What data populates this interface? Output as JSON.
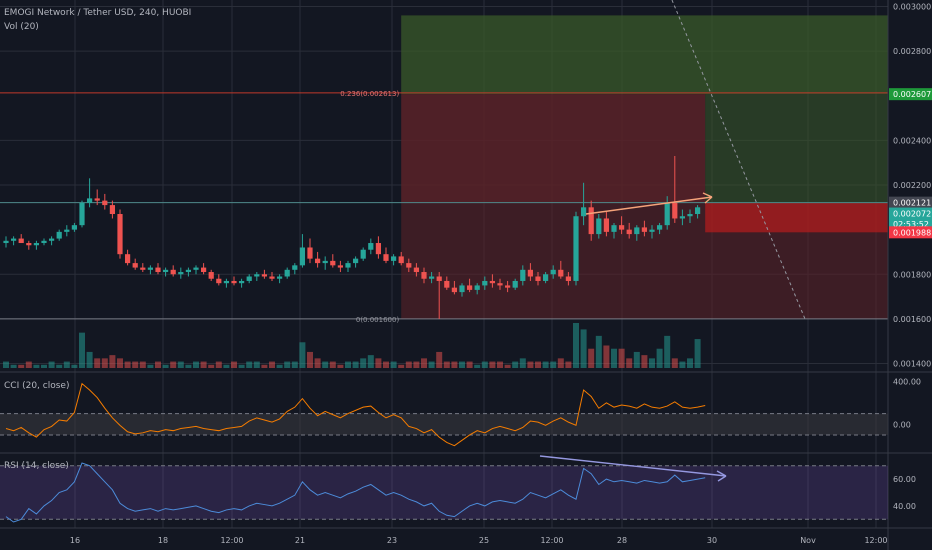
{
  "header": {
    "symbol_title": "EMOGI Network / Tether USD, 240, HUOBI",
    "volume_label": "Vol (20)"
  },
  "indicators": {
    "cci_label": "CCI (20, close)",
    "rsi_label": "RSI (14, close)"
  },
  "price_axis": {
    "ticks": [
      "0.003000",
      "0.002800",
      "0.002400",
      "0.002200",
      "0.001800",
      "0.001600",
      "0.001400"
    ],
    "tick_values": [
      0.003,
      0.0028,
      0.0024,
      0.0022,
      0.0018,
      0.0016,
      0.0014
    ]
  },
  "price_badges": [
    {
      "label": "0.002607",
      "value": 0.002607,
      "bg": "#1e9a3a",
      "fg": "#ffffff"
    },
    {
      "label": "0.002121",
      "value": 0.002121,
      "bg": "#434651",
      "fg": "#ffffff"
    },
    {
      "label": "0.002072",
      "value": 0.002072,
      "bg": "#26a69a",
      "fg": "#ffffff"
    },
    {
      "label": "02:53:52",
      "value": 0.002025,
      "bg": "#26a69a",
      "fg": "#ffffff"
    },
    {
      "label": "0.001988",
      "value": 0.001988,
      "bg": "#f23645",
      "fg": "#ffffff"
    }
  ],
  "fib_labels": [
    {
      "label": "0.236(0.002613)",
      "value": 0.002613
    },
    {
      "label": "0(0.001600)",
      "value": 0.0016
    }
  ],
  "cci_axis": {
    "ticks": [
      "400.00",
      "0.00"
    ],
    "tick_values": [
      400,
      0
    ]
  },
  "rsi_axis": {
    "ticks": [
      "60.00",
      "40.00"
    ],
    "tick_values": [
      60,
      40
    ]
  },
  "time_axis": {
    "labels": [
      "16",
      "18",
      "12:00",
      "21",
      "23",
      "25",
      "12:00",
      "28",
      "30",
      "Nov",
      "12:00"
    ]
  },
  "colors": {
    "background": "#131722",
    "bull": "#26a69a",
    "bear": "#ef5350",
    "grid": "#2a2e39",
    "target_zone": "#3a5a2a",
    "stop_zone": "#5a2228",
    "cci_line": "#f57c00",
    "rsi_line": "#4c8bd9",
    "rsi_band": "#7e57c2",
    "trend_line": "#f5a37a",
    "rsi_trend": "#9598e0"
  },
  "chart_data": [
    {
      "type": "candlestick",
      "title": "EMOGI Network / Tether USD, 240, HUOBI",
      "ylim": [
        0.00138,
        0.00302
      ],
      "candles": [
        [
          0.00194,
          0.00197,
          0.00192,
          0.00195
        ],
        [
          0.00195,
          0.00197,
          0.00193,
          0.00196
        ],
        [
          0.00196,
          0.00198,
          0.00194,
          0.00194
        ],
        [
          0.00194,
          0.00195,
          0.00191,
          0.00193
        ],
        [
          0.00193,
          0.00195,
          0.00191,
          0.00194
        ],
        [
          0.00194,
          0.00196,
          0.00193,
          0.00195
        ],
        [
          0.00195,
          0.00197,
          0.00193,
          0.00196
        ],
        [
          0.00196,
          0.002,
          0.00195,
          0.00199
        ],
        [
          0.00199,
          0.00202,
          0.00197,
          0.002
        ],
        [
          0.002,
          0.00203,
          0.00199,
          0.00202
        ],
        [
          0.00202,
          0.00213,
          0.00201,
          0.00212
        ],
        [
          0.00212,
          0.00223,
          0.0021,
          0.00214
        ],
        [
          0.00214,
          0.00218,
          0.00211,
          0.00213
        ],
        [
          0.00213,
          0.00216,
          0.00209,
          0.00211
        ],
        [
          0.00211,
          0.00213,
          0.00205,
          0.00207
        ],
        [
          0.00207,
          0.00209,
          0.00187,
          0.00189
        ],
        [
          0.00189,
          0.00191,
          0.00184,
          0.00185
        ],
        [
          0.00185,
          0.00187,
          0.00182,
          0.00183
        ],
        [
          0.00183,
          0.00185,
          0.00181,
          0.00182
        ],
        [
          0.00182,
          0.00184,
          0.0018,
          0.00183
        ],
        [
          0.00183,
          0.00185,
          0.0018,
          0.00181
        ],
        [
          0.00181,
          0.00183,
          0.00179,
          0.00182
        ],
        [
          0.00182,
          0.00184,
          0.00179,
          0.0018
        ],
        [
          0.0018,
          0.00183,
          0.00178,
          0.00181
        ],
        [
          0.00181,
          0.00183,
          0.00179,
          0.00182
        ],
        [
          0.00182,
          0.00184,
          0.0018,
          0.00183
        ],
        [
          0.00183,
          0.00185,
          0.0018,
          0.00181
        ],
        [
          0.00181,
          0.00182,
          0.00177,
          0.00178
        ],
        [
          0.00178,
          0.0018,
          0.00175,
          0.00176
        ],
        [
          0.00176,
          0.00178,
          0.00174,
          0.00177
        ],
        [
          0.00177,
          0.00179,
          0.00175,
          0.00176
        ],
        [
          0.00176,
          0.00178,
          0.00174,
          0.00177
        ],
        [
          0.00177,
          0.0018,
          0.00176,
          0.00179
        ],
        [
          0.00179,
          0.00181,
          0.00177,
          0.0018
        ],
        [
          0.0018,
          0.00182,
          0.00178,
          0.00179
        ],
        [
          0.00179,
          0.00181,
          0.00177,
          0.00178
        ],
        [
          0.00178,
          0.0018,
          0.00176,
          0.00179
        ],
        [
          0.00179,
          0.00183,
          0.00178,
          0.00182
        ],
        [
          0.00182,
          0.00185,
          0.0018,
          0.00184
        ],
        [
          0.00184,
          0.00198,
          0.00183,
          0.00192
        ],
        [
          0.00192,
          0.00196,
          0.00185,
          0.00187
        ],
        [
          0.00187,
          0.0019,
          0.00183,
          0.00185
        ],
        [
          0.00185,
          0.00188,
          0.00182,
          0.00186
        ],
        [
          0.00186,
          0.00189,
          0.00183,
          0.00184
        ],
        [
          0.00184,
          0.00186,
          0.00181,
          0.00183
        ],
        [
          0.00183,
          0.00186,
          0.00181,
          0.00185
        ],
        [
          0.00185,
          0.00188,
          0.00183,
          0.00187
        ],
        [
          0.00187,
          0.00192,
          0.00186,
          0.00191
        ],
        [
          0.00191,
          0.00196,
          0.00189,
          0.00194
        ],
        [
          0.00194,
          0.00197,
          0.00187,
          0.00189
        ],
        [
          0.00189,
          0.00192,
          0.00185,
          0.00186
        ],
        [
          0.00186,
          0.00189,
          0.00184,
          0.00188
        ],
        [
          0.00188,
          0.0019,
          0.00184,
          0.00185
        ],
        [
          0.00185,
          0.00187,
          0.00181,
          0.00183
        ],
        [
          0.00183,
          0.00185,
          0.00179,
          0.00181
        ],
        [
          0.00181,
          0.00183,
          0.00176,
          0.00178
        ],
        [
          0.00178,
          0.00181,
          0.00176,
          0.00179
        ],
        [
          0.00179,
          0.00181,
          0.0016,
          0.00177
        ],
        [
          0.00177,
          0.00179,
          0.00173,
          0.00174
        ],
        [
          0.00174,
          0.00177,
          0.00171,
          0.00172
        ],
        [
          0.00172,
          0.00176,
          0.0017,
          0.00175
        ],
        [
          0.00175,
          0.00178,
          0.00172,
          0.00173
        ],
        [
          0.00173,
          0.00176,
          0.00171,
          0.00175
        ],
        [
          0.00175,
          0.00179,
          0.00173,
          0.00177
        ],
        [
          0.00177,
          0.0018,
          0.00174,
          0.00176
        ],
        [
          0.00176,
          0.00178,
          0.00173,
          0.00175
        ],
        [
          0.00175,
          0.00177,
          0.00172,
          0.00174
        ],
        [
          0.00174,
          0.00178,
          0.00173,
          0.00177
        ],
        [
          0.00177,
          0.00184,
          0.00175,
          0.00182
        ],
        [
          0.00182,
          0.00185,
          0.00177,
          0.00179
        ],
        [
          0.00179,
          0.00181,
          0.00175,
          0.00177
        ],
        [
          0.00177,
          0.00181,
          0.00176,
          0.0018
        ],
        [
          0.0018,
          0.00184,
          0.00178,
          0.00182
        ],
        [
          0.00182,
          0.00186,
          0.00178,
          0.00179
        ],
        [
          0.00179,
          0.00181,
          0.00175,
          0.00177
        ],
        [
          0.00177,
          0.00208,
          0.00175,
          0.00206
        ],
        [
          0.00206,
          0.00221,
          0.00202,
          0.0021
        ],
        [
          0.0021,
          0.00213,
          0.00195,
          0.00198
        ],
        [
          0.00198,
          0.00207,
          0.00196,
          0.00205
        ],
        [
          0.00205,
          0.00208,
          0.00197,
          0.00199
        ],
        [
          0.00199,
          0.00203,
          0.00196,
          0.00202
        ],
        [
          0.00202,
          0.00206,
          0.00198,
          0.002
        ],
        [
          0.002,
          0.00203,
          0.00196,
          0.00198
        ],
        [
          0.00198,
          0.00202,
          0.00195,
          0.00201
        ],
        [
          0.00201,
          0.00204,
          0.00197,
          0.00199
        ],
        [
          0.00199,
          0.00202,
          0.00196,
          0.002
        ],
        [
          0.002,
          0.00203,
          0.00198,
          0.00202
        ],
        [
          0.00202,
          0.00215,
          0.002,
          0.00212
        ],
        [
          0.00212,
          0.00233,
          0.00203,
          0.00205
        ],
        [
          0.00205,
          0.00209,
          0.00202,
          0.00206
        ],
        [
          0.00206,
          0.00209,
          0.00203,
          0.00207
        ],
        [
          0.00207,
          0.00211,
          0.00205,
          0.0021
        ]
      ]
    },
    {
      "type": "bar",
      "title": "Vol (20)",
      "values": [
        2,
        1,
        1,
        2,
        1,
        1,
        2,
        1,
        2,
        1,
        11,
        5,
        3,
        3,
        4,
        3,
        2,
        2,
        2,
        1,
        2,
        1,
        2,
        2,
        1,
        2,
        2,
        1,
        2,
        1,
        2,
        1,
        2,
        2,
        1,
        2,
        1,
        2,
        2,
        8,
        5,
        3,
        2,
        2,
        1,
        2,
        2,
        3,
        4,
        3,
        2,
        2,
        1,
        2,
        2,
        3,
        2,
        5,
        2,
        2,
        2,
        2,
        1,
        2,
        2,
        2,
        1,
        2,
        3,
        2,
        2,
        2,
        2,
        3,
        2,
        14,
        12,
        6,
        10,
        7,
        6,
        6,
        3,
        5,
        4,
        3,
        6,
        10,
        3,
        2,
        3,
        9
      ]
    },
    {
      "type": "line",
      "title": "CCI (20, close)",
      "ylim": [
        -250,
        470
      ],
      "values": [
        -40,
        -60,
        -30,
        -80,
        -120,
        -50,
        -20,
        40,
        30,
        110,
        380,
        320,
        250,
        150,
        60,
        -10,
        -70,
        -90,
        -80,
        -60,
        -70,
        -50,
        -60,
        -40,
        -30,
        -20,
        -40,
        -50,
        -60,
        -40,
        -30,
        -20,
        30,
        60,
        40,
        20,
        50,
        120,
        160,
        240,
        150,
        80,
        120,
        90,
        60,
        100,
        130,
        160,
        170,
        110,
        60,
        90,
        60,
        -20,
        -40,
        -80,
        -50,
        -120,
        -170,
        -200,
        -150,
        -100,
        -60,
        -80,
        -40,
        -20,
        -40,
        -60,
        -30,
        30,
        20,
        -10,
        30,
        60,
        20,
        -10,
        320,
        260,
        150,
        200,
        160,
        180,
        170,
        150,
        190,
        160,
        150,
        170,
        210,
        160,
        150,
        160,
        175
      ]
    },
    {
      "type": "line",
      "title": "RSI (14, close)",
      "ylim": [
        25,
        78
      ],
      "values": [
        32,
        28,
        30,
        38,
        34,
        40,
        44,
        50,
        52,
        58,
        72,
        70,
        64,
        58,
        52,
        42,
        38,
        36,
        37,
        38,
        36,
        38,
        37,
        38,
        39,
        40,
        38,
        36,
        35,
        37,
        38,
        37,
        40,
        42,
        41,
        40,
        42,
        45,
        48,
        58,
        52,
        48,
        50,
        48,
        46,
        49,
        51,
        54,
        56,
        52,
        48,
        50,
        48,
        45,
        43,
        40,
        42,
        36,
        33,
        32,
        36,
        40,
        42,
        40,
        43,
        44,
        43,
        42,
        45,
        50,
        48,
        46,
        49,
        52,
        48,
        45,
        68,
        64,
        56,
        60,
        58,
        59,
        58,
        57,
        59,
        58,
        57,
        58,
        63,
        58,
        59,
        60,
        61
      ]
    }
  ],
  "annotations": {
    "target_zone": [
      0.002607,
      0.00296
    ],
    "stop_zone_upper": [
      0.002121,
      0.002607
    ],
    "stop_zone_lower": [
      0.0016,
      0.002121
    ],
    "target_label_price": 0.002613,
    "base_label_price": 0.0016,
    "position_left_index": 52,
    "position_right_index": 92
  }
}
